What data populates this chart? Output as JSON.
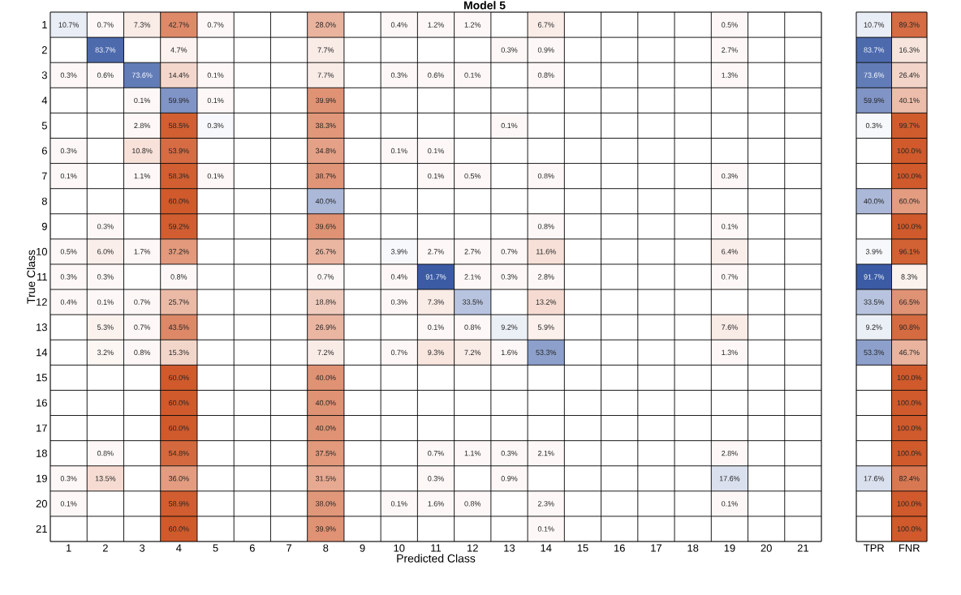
{
  "chart_data": [
    {
      "type": "heatmap",
      "title": "Model 5",
      "xlabel": "Predicted Class",
      "ylabel": "True Class",
      "categories": [
        "1",
        "2",
        "3",
        "4",
        "5",
        "6",
        "7",
        "8",
        "9",
        "10",
        "11",
        "12",
        "13",
        "14",
        "15",
        "16",
        "17",
        "18",
        "19",
        "20",
        "21"
      ],
      "y_categories": [
        "1",
        "2",
        "3",
        "4",
        "5",
        "6",
        "7",
        "8",
        "9",
        "10",
        "11",
        "12",
        "13",
        "14",
        "15",
        "16",
        "17",
        "18",
        "19",
        "20",
        "21"
      ],
      "cells": [
        [
          10.7,
          0.7,
          7.3,
          42.7,
          0.7,
          null,
          null,
          28.0,
          null,
          0.4,
          1.2,
          1.2,
          null,
          6.7,
          null,
          null,
          null,
          null,
          0.5,
          null,
          null
        ],
        [
          null,
          83.7,
          null,
          4.7,
          null,
          null,
          null,
          7.7,
          null,
          null,
          null,
          null,
          0.3,
          0.9,
          null,
          null,
          null,
          null,
          2.7,
          null,
          null
        ],
        [
          0.3,
          0.6,
          73.6,
          14.4,
          0.1,
          null,
          null,
          7.7,
          null,
          0.3,
          0.6,
          0.1,
          null,
          0.8,
          null,
          null,
          null,
          null,
          1.3,
          null,
          null
        ],
        [
          null,
          null,
          0.1,
          59.9,
          0.1,
          null,
          null,
          39.9,
          null,
          null,
          null,
          null,
          null,
          null,
          null,
          null,
          null,
          null,
          null,
          null,
          null
        ],
        [
          null,
          null,
          2.8,
          58.5,
          0.3,
          null,
          null,
          38.3,
          null,
          null,
          null,
          null,
          0.1,
          null,
          null,
          null,
          null,
          null,
          null,
          null,
          null
        ],
        [
          0.3,
          null,
          10.8,
          53.9,
          null,
          null,
          null,
          34.8,
          null,
          0.1,
          0.1,
          null,
          null,
          null,
          null,
          null,
          null,
          null,
          null,
          null,
          null
        ],
        [
          0.1,
          null,
          1.1,
          58.3,
          0.1,
          null,
          null,
          38.7,
          null,
          null,
          0.1,
          0.5,
          null,
          0.8,
          null,
          null,
          null,
          null,
          0.3,
          null,
          null
        ],
        [
          null,
          null,
          null,
          60.0,
          null,
          null,
          null,
          40.0,
          null,
          null,
          null,
          null,
          null,
          null,
          null,
          null,
          null,
          null,
          null,
          null,
          null
        ],
        [
          null,
          0.3,
          null,
          59.2,
          null,
          null,
          null,
          39.6,
          null,
          null,
          null,
          null,
          null,
          0.8,
          null,
          null,
          null,
          null,
          0.1,
          null,
          null
        ],
        [
          0.5,
          6.0,
          1.7,
          37.2,
          null,
          null,
          null,
          26.7,
          null,
          3.9,
          2.7,
          2.7,
          0.7,
          11.6,
          null,
          null,
          null,
          null,
          6.4,
          null,
          null
        ],
        [
          0.3,
          0.3,
          null,
          0.8,
          null,
          null,
          null,
          0.7,
          null,
          0.4,
          91.7,
          2.1,
          0.3,
          2.8,
          null,
          null,
          null,
          null,
          0.7,
          null,
          null
        ],
        [
          0.4,
          0.1,
          0.7,
          25.7,
          null,
          null,
          null,
          18.8,
          null,
          0.3,
          7.3,
          33.5,
          null,
          13.2,
          null,
          null,
          null,
          null,
          null,
          null,
          null
        ],
        [
          null,
          5.3,
          0.7,
          43.5,
          null,
          null,
          null,
          26.9,
          null,
          null,
          0.1,
          0.8,
          9.2,
          5.9,
          null,
          null,
          null,
          null,
          7.6,
          null,
          null
        ],
        [
          null,
          3.2,
          0.8,
          15.3,
          null,
          null,
          null,
          7.2,
          null,
          0.7,
          9.3,
          7.2,
          1.6,
          53.3,
          null,
          null,
          null,
          null,
          1.3,
          null,
          null
        ],
        [
          null,
          null,
          null,
          60.0,
          null,
          null,
          null,
          40.0,
          null,
          null,
          null,
          null,
          null,
          null,
          null,
          null,
          null,
          null,
          null,
          null,
          null
        ],
        [
          null,
          null,
          null,
          60.0,
          null,
          null,
          null,
          40.0,
          null,
          null,
          null,
          null,
          null,
          null,
          null,
          null,
          null,
          null,
          null,
          null,
          null
        ],
        [
          null,
          null,
          null,
          60.0,
          null,
          null,
          null,
          40.0,
          null,
          null,
          null,
          null,
          null,
          null,
          null,
          null,
          null,
          null,
          null,
          null,
          null
        ],
        [
          null,
          0.8,
          null,
          54.8,
          null,
          null,
          null,
          37.5,
          null,
          null,
          0.7,
          1.1,
          0.3,
          2.1,
          null,
          null,
          null,
          null,
          2.8,
          null,
          null
        ],
        [
          0.3,
          13.5,
          null,
          36.0,
          null,
          null,
          null,
          31.5,
          null,
          null,
          0.3,
          null,
          0.9,
          null,
          null,
          null,
          null,
          null,
          17.6,
          null,
          null
        ],
        [
          0.1,
          null,
          null,
          58.9,
          null,
          null,
          null,
          38.0,
          null,
          0.1,
          1.6,
          0.8,
          null,
          2.3,
          null,
          null,
          null,
          null,
          0.1,
          null,
          null
        ],
        [
          null,
          null,
          null,
          60.0,
          null,
          null,
          null,
          39.9,
          null,
          null,
          null,
          null,
          null,
          0.1,
          null,
          null,
          null,
          null,
          null,
          null,
          null
        ]
      ],
      "cell_labels": [
        [
          "10.7%",
          "0.7%",
          "7.3%",
          "42.7%",
          "0.7%",
          null,
          null,
          "28.0%",
          null,
          "0.4%",
          "1.2%",
          "1.2%",
          null,
          "6.7%",
          null,
          null,
          null,
          null,
          "0.5%",
          null,
          null
        ],
        [
          null,
          "83.7%",
          null,
          "4.7%",
          null,
          null,
          null,
          "7.7%",
          null,
          null,
          null,
          null,
          "0.3%",
          "0.9%",
          null,
          null,
          null,
          null,
          "2.7%",
          null,
          null
        ],
        [
          "0.3%",
          "0.6%",
          "73.6%",
          "14.4%",
          "0.1%",
          null,
          null,
          "7.7%",
          null,
          "0.3%",
          "0.6%",
          "0.1%",
          null,
          "0.8%",
          null,
          null,
          null,
          null,
          "1.3%",
          null,
          null
        ],
        [
          null,
          null,
          "0.1%",
          "59.9%",
          "0.1%",
          null,
          null,
          "39.9%",
          null,
          null,
          null,
          null,
          null,
          null,
          null,
          null,
          null,
          null,
          null,
          null,
          null
        ],
        [
          null,
          null,
          "2.8%",
          "58.5%",
          "0.3%",
          null,
          null,
          "38.3%",
          null,
          null,
          null,
          null,
          "0.1%",
          null,
          null,
          null,
          null,
          null,
          null,
          null,
          null
        ],
        [
          "0.3%",
          null,
          "10.8%",
          "53.9%",
          null,
          null,
          null,
          "34.8%",
          null,
          "0.1%",
          "0.1%",
          null,
          null,
          null,
          null,
          null,
          null,
          null,
          null,
          null,
          null
        ],
        [
          "0.1%",
          null,
          "1.1%",
          "58.3%",
          "0.1%",
          null,
          null,
          "38.7%",
          null,
          null,
          "0.1%",
          "0.5%",
          null,
          "0.8%",
          null,
          null,
          null,
          null,
          "0.3%",
          null,
          null
        ],
        [
          null,
          null,
          null,
          "60.0%",
          null,
          null,
          null,
          "40.0%",
          null,
          null,
          null,
          null,
          null,
          null,
          null,
          null,
          null,
          null,
          null,
          null,
          null
        ],
        [
          null,
          "0.3%",
          null,
          "59.2%",
          null,
          null,
          null,
          "39.6%",
          null,
          null,
          null,
          null,
          null,
          "0.8%",
          null,
          null,
          null,
          null,
          "0.1%",
          null,
          null
        ],
        [
          "0.5%",
          "6.0%",
          "1.7%",
          "37.2%",
          null,
          null,
          null,
          "26.7%",
          null,
          "3.9%",
          "2.7%",
          "2.7%",
          "0.7%",
          "11.6%",
          null,
          null,
          null,
          null,
          "6.4%",
          null,
          null
        ],
        [
          "0.3%",
          "0.3%",
          null,
          "0.8%",
          null,
          null,
          null,
          "0.7%",
          null,
          "0.4%",
          "91.7%",
          "2.1%",
          "0.3%",
          "2.8%",
          null,
          null,
          null,
          null,
          "0.7%",
          null,
          null
        ],
        [
          "0.4%",
          "0.1%",
          "0.7%",
          "25.7%",
          null,
          null,
          null,
          "18.8%",
          null,
          "0.3%",
          "7.3%",
          "33.5%",
          null,
          "13.2%",
          null,
          null,
          null,
          null,
          null,
          null,
          null
        ],
        [
          null,
          "5.3%",
          "0.7%",
          "43.5%",
          null,
          null,
          null,
          "26.9%",
          null,
          null,
          "0.1%",
          "0.8%",
          "9.2%",
          "5.9%",
          null,
          null,
          null,
          null,
          "7.6%",
          null,
          null
        ],
        [
          null,
          "3.2%",
          "0.8%",
          "15.3%",
          null,
          null,
          null,
          "7.2%",
          null,
          "0.7%",
          "9.3%",
          "7.2%",
          "1.6%",
          "53.3%",
          null,
          null,
          null,
          null,
          "1.3%",
          null,
          null
        ],
        [
          null,
          null,
          null,
          "60.0%",
          null,
          null,
          null,
          "40.0%",
          null,
          null,
          null,
          null,
          null,
          null,
          null,
          null,
          null,
          null,
          null,
          null,
          null
        ],
        [
          null,
          null,
          null,
          "60.0%",
          null,
          null,
          null,
          "40.0%",
          null,
          null,
          null,
          null,
          null,
          null,
          null,
          null,
          null,
          null,
          null,
          null,
          null
        ],
        [
          null,
          null,
          null,
          "60.0%",
          null,
          null,
          null,
          "40.0%",
          null,
          null,
          null,
          null,
          null,
          null,
          null,
          null,
          null,
          null,
          null,
          null,
          null
        ],
        [
          null,
          "0.8%",
          null,
          "54.8%",
          null,
          null,
          null,
          "37.5%",
          null,
          null,
          "0.7%",
          "1.1%",
          "0.3%",
          "2.1%",
          null,
          null,
          null,
          null,
          "2.8%",
          null,
          null
        ],
        [
          "0.3%",
          "13.5%",
          null,
          "36.0%",
          null,
          null,
          null,
          "31.5%",
          null,
          null,
          "0.3%",
          null,
          "0.9%",
          null,
          null,
          null,
          null,
          null,
          "17.6%",
          null,
          null
        ],
        [
          "0.1%",
          null,
          null,
          "58.9%",
          null,
          null,
          null,
          "38.0%",
          null,
          "0.1%",
          "1.6%",
          "0.8%",
          null,
          "2.3%",
          null,
          null,
          null,
          null,
          "0.1%",
          null,
          null
        ],
        [
          null,
          null,
          null,
          "60.0%",
          null,
          null,
          null,
          "39.9%",
          null,
          null,
          null,
          null,
          null,
          "0.1%",
          null,
          null,
          null,
          null,
          null,
          null,
          null
        ]
      ]
    },
    {
      "type": "heatmap",
      "tick_labels": "x",
      "categories": [
        "TPR",
        "FNR"
      ],
      "y_categories": [
        "1",
        "2",
        "3",
        "4",
        "5",
        "6",
        "7",
        "8",
        "9",
        "10",
        "11",
        "12",
        "13",
        "14",
        "15",
        "16",
        "17",
        "18",
        "19",
        "20",
        "21"
      ],
      "cells": [
        [
          10.7,
          89.3
        ],
        [
          83.7,
          16.3
        ],
        [
          73.6,
          26.4
        ],
        [
          59.9,
          40.1
        ],
        [
          0.3,
          99.7
        ],
        [
          null,
          100.0
        ],
        [
          null,
          100.0
        ],
        [
          40.0,
          60.0
        ],
        [
          null,
          100.0
        ],
        [
          3.9,
          96.1
        ],
        [
          91.7,
          8.3
        ],
        [
          33.5,
          66.5
        ],
        [
          9.2,
          90.8
        ],
        [
          53.3,
          46.7
        ],
        [
          null,
          100.0
        ],
        [
          null,
          100.0
        ],
        [
          null,
          100.0
        ],
        [
          null,
          100.0
        ],
        [
          17.6,
          82.4
        ],
        [
          null,
          100.0
        ],
        [
          null,
          100.0
        ]
      ],
      "cell_labels": [
        [
          "10.7%",
          "89.3%"
        ],
        [
          "83.7%",
          "16.3%"
        ],
        [
          "73.6%",
          "26.4%"
        ],
        [
          "59.9%",
          "40.1%"
        ],
        [
          "0.3%",
          "99.7%"
        ],
        [
          null,
          "100.0%"
        ],
        [
          null,
          "100.0%"
        ],
        [
          "40.0%",
          "60.0%"
        ],
        [
          null,
          "100.0%"
        ],
        [
          "3.9%",
          "96.1%"
        ],
        [
          "91.7%",
          "8.3%"
        ],
        [
          "33.5%",
          "66.5%"
        ],
        [
          "9.2%",
          "90.8%"
        ],
        [
          "53.3%",
          "46.7%"
        ],
        [
          null,
          "100.0%"
        ],
        [
          null,
          "100.0%"
        ],
        [
          null,
          "100.0%"
        ],
        [
          null,
          "100.0%"
        ],
        [
          "17.6%",
          "82.4%"
        ],
        [
          null,
          "100.0%"
        ],
        [
          null,
          "100.0%"
        ]
      ]
    }
  ]
}
